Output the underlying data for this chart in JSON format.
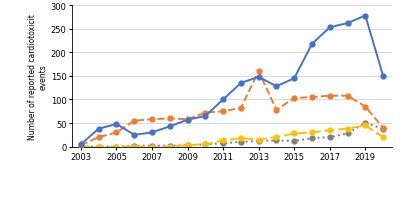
{
  "years": [
    2003,
    2004,
    2005,
    2006,
    2007,
    2008,
    2009,
    2010,
    2011,
    2012,
    2013,
    2014,
    2015,
    2016,
    2017,
    2018,
    2019,
    2020
  ],
  "adalimumab": [
    5,
    38,
    48,
    25,
    30,
    43,
    57,
    65,
    100,
    135,
    148,
    128,
    145,
    218,
    253,
    262,
    278,
    150
  ],
  "etanercept": [
    3,
    20,
    30,
    55,
    58,
    60,
    58,
    72,
    75,
    82,
    160,
    78,
    103,
    105,
    108,
    108,
    85,
    40
  ],
  "abatacept": [
    0,
    0,
    0,
    2,
    2,
    2,
    3,
    5,
    7,
    10,
    12,
    13,
    12,
    18,
    20,
    28,
    50,
    38
  ],
  "tocilizumab": [
    0,
    0,
    0,
    0,
    0,
    0,
    3,
    5,
    13,
    18,
    15,
    20,
    28,
    30,
    35,
    38,
    45,
    20
  ],
  "adalimumab_color": "#4472c4",
  "etanercept_color": "#ed7d31",
  "abatacept_color": "#808080",
  "tocilizumab_color": "#ffc000",
  "ylabel": "Number of reported cardiotoxicit\nevents",
  "ylim": [
    0,
    300
  ],
  "yticks": [
    0,
    50,
    100,
    150,
    200,
    250,
    300
  ],
  "xticks": [
    2003,
    2005,
    2007,
    2009,
    2011,
    2013,
    2015,
    2017,
    2019
  ],
  "bg_color": "#ffffff",
  "grid_color": "#d9d9d9"
}
